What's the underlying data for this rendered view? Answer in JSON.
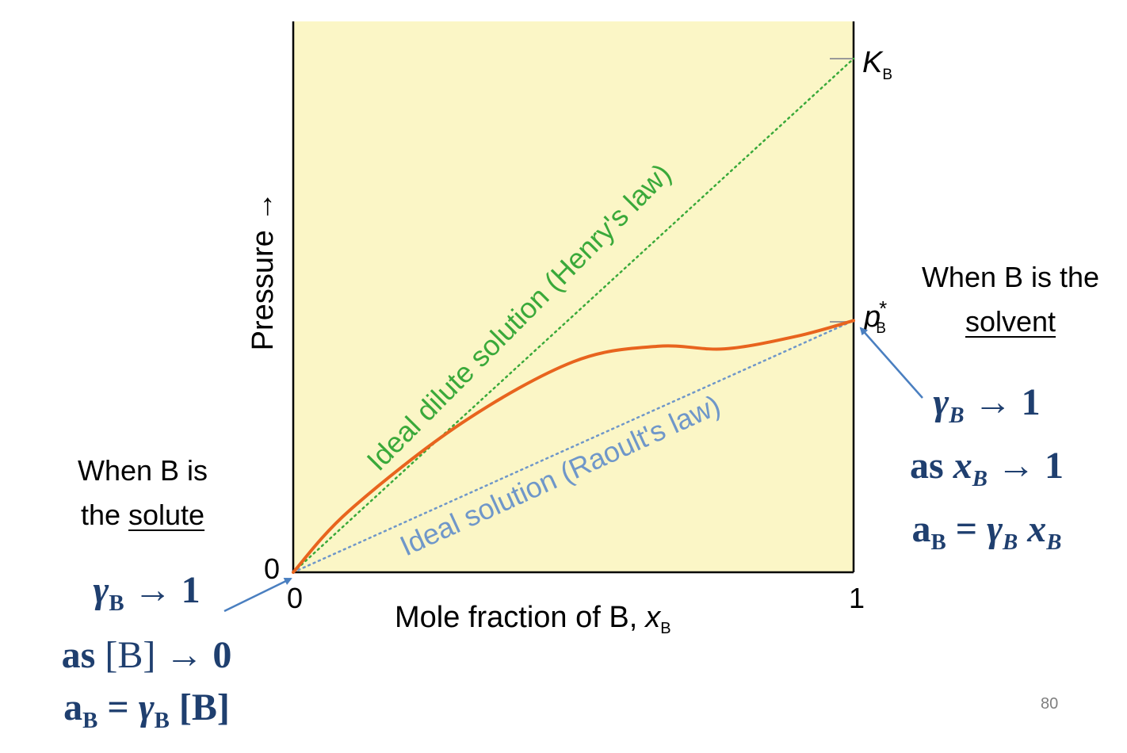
{
  "figure": {
    "y_axis_label": "Pressure →",
    "x_axis_label": "Mole  fraction  of  B,",
    "x_axis_symbol": "x",
    "x_axis_symbol_sub": "B",
    "x_tick_0": "0",
    "x_tick_1": "1",
    "y_tick_0": "0",
    "kb_symbol": "K",
    "kb_sub": "B",
    "pb_symbol": "p",
    "pb_sup": "*",
    "pb_sub": "B",
    "henry_label": "Ideal  dilute  solution  (Henry's  law)",
    "raoult_label": "Ideal  solution  (Raoult's  law)",
    "colors": {
      "plot_background": "#fbf6c6",
      "henry": "#3aa93a",
      "raoult": "#6f97c9",
      "real_curve": "#e8641e",
      "arrow": "#4a7fc0",
      "math_text": "#1f3f6f"
    }
  },
  "chart_data": {
    "type": "line",
    "x_range": [
      0,
      1
    ],
    "x_ticks": [
      "0",
      "1"
    ],
    "y_ticks": [
      "0"
    ],
    "series": [
      {
        "name": "Ideal dilute solution (Henry's law)",
        "style": "dotted",
        "x": [
          0,
          1
        ],
        "y": [
          0,
          1.0
        ]
      },
      {
        "name": "Ideal solution (Raoult's law)",
        "style": "dotted",
        "x": [
          0,
          1
        ],
        "y": [
          0,
          0.49
        ]
      },
      {
        "name": "",
        "style": "solid",
        "x": [
          0,
          0.1,
          0.3,
          0.5,
          0.65,
          0.77,
          0.9,
          1.0
        ],
        "y": [
          0,
          0.12,
          0.29,
          0.41,
          0.44,
          0.435,
          0.46,
          0.49
        ]
      }
    ],
    "right_axis_labels": [
      "K_B",
      "p*_B"
    ]
  },
  "right_note": {
    "line1": "When B is the",
    "line2": "solvent"
  },
  "left_note": {
    "line1": "When B is",
    "line2_pre": "the ",
    "line2_underlined": "solute"
  },
  "right_math": {
    "l1_gamma": "γ",
    "l1_sub": "B",
    "l1_rest": " → 1",
    "l2_as": "as ",
    "l2_x": "x",
    "l2_sub": "B",
    "l2_rest": " → 1",
    "l3_a": "a",
    "l3_a_sub": "B",
    "l3_eq": " = ",
    "l3_gamma": "γ",
    "l3_gamma_sub": "B",
    "l3_x": " x",
    "l3_x_sub": "B"
  },
  "left_math": {
    "l1_gamma": "γ",
    "l1_sub": "B",
    "l1_rest": " → 1",
    "l2_as": "as ",
    "l2_bracket": "[B]",
    "l2_rest": " → 0",
    "l3_a": "a",
    "l3_a_sub": "B",
    "l3_eq": " = ",
    "l3_gamma": "γ",
    "l3_gamma_sub": "B",
    "l3_bracket": " [B]"
  },
  "page_number": "80"
}
